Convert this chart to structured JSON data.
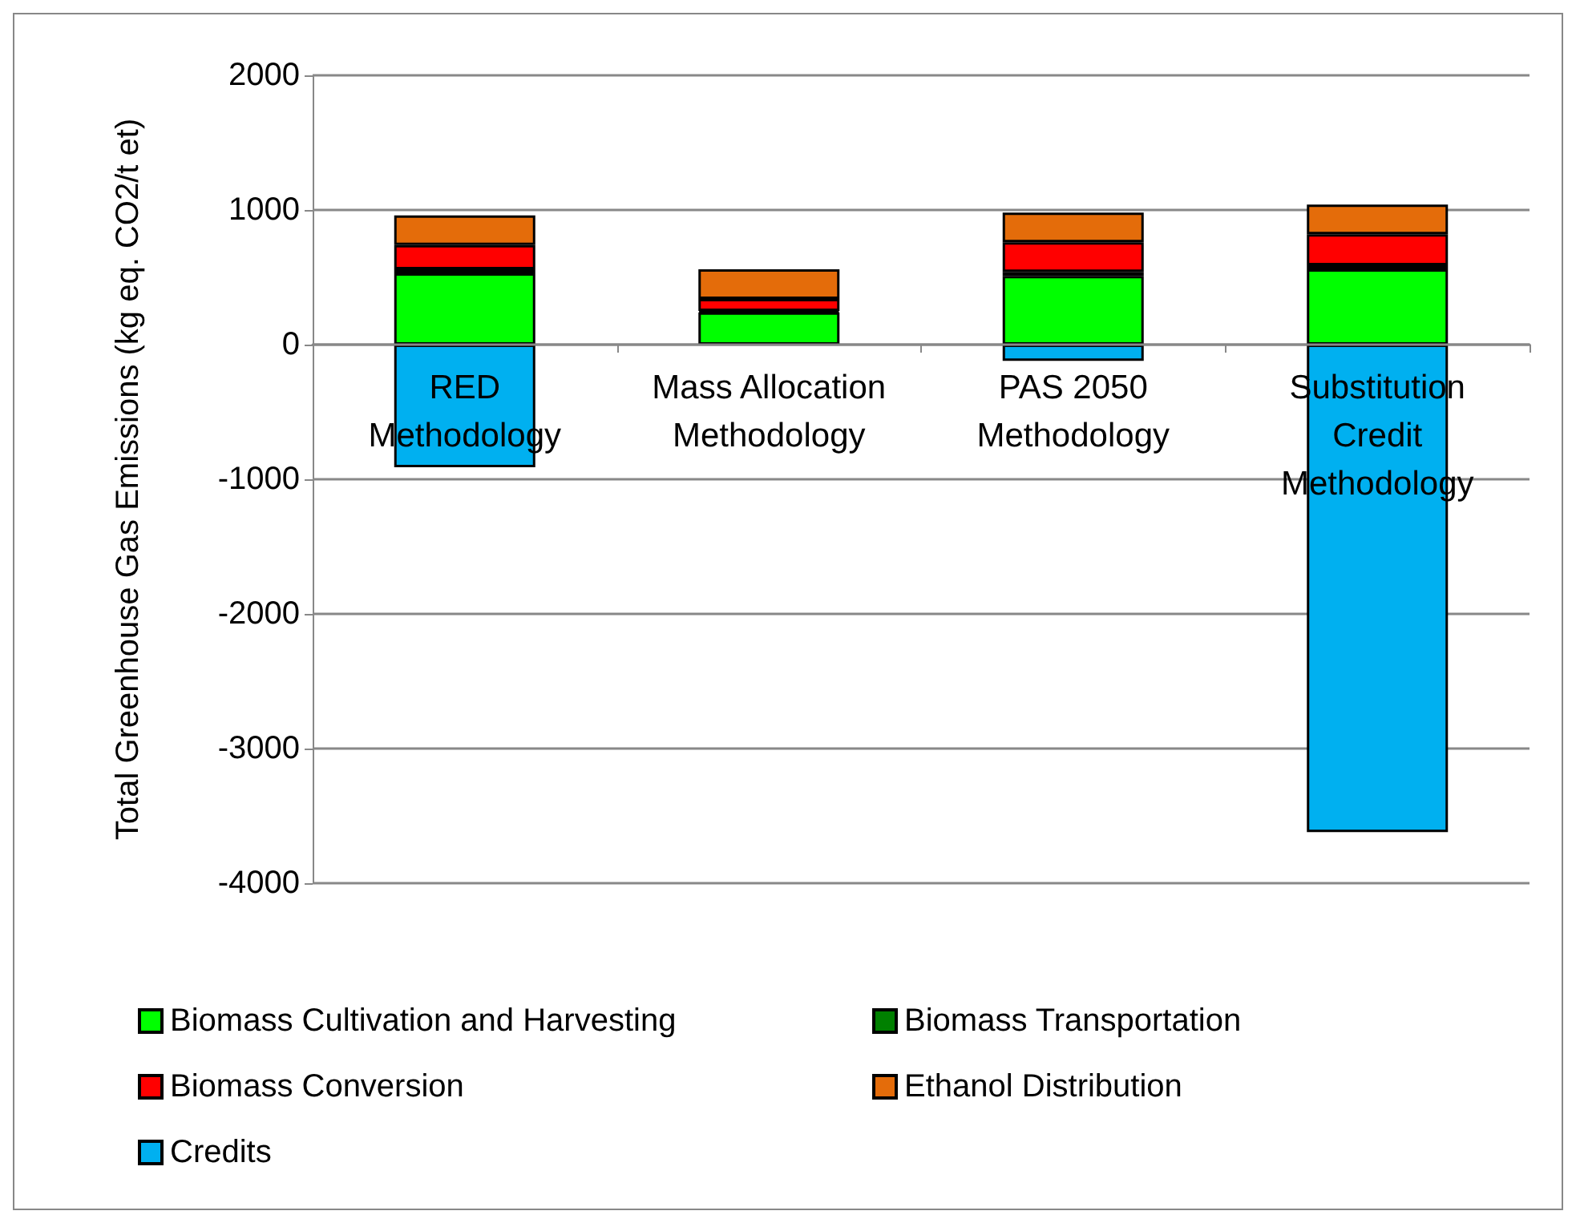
{
  "chart_data": {
    "type": "bar",
    "stacked": true,
    "ylabel": "Total Greenhouse Gas Emissions (kg eq. CO2/t et)",
    "categories": [
      "RED\nMethodology",
      "Mass Allocation\nMethodology",
      "PAS 2050\nMethodology",
      "Substitution\nCredit\nMethodology"
    ],
    "series": [
      {
        "name": "Biomass Cultivation and Harvesting",
        "color": "#00ff00",
        "values": [
          530,
          240,
          510,
          560
        ]
      },
      {
        "name": "Biomass Transportation",
        "color": "#008000",
        "values": [
          30,
          10,
          30,
          30
        ]
      },
      {
        "name": "Biomass Conversion",
        "color": "#ff0000",
        "values": [
          180,
          90,
          220,
          230
        ]
      },
      {
        "name": "Ethanol Distribution",
        "color": "#e46c0a",
        "values": [
          220,
          220,
          220,
          220
        ]
      },
      {
        "name": "Credits",
        "color": "#00b0f0",
        "values": [
          -910,
          null,
          -120,
          -3620
        ]
      }
    ],
    "ylim": [
      -4000,
      2000
    ],
    "yticks": [
      -4000,
      -3000,
      -2000,
      -1000,
      0,
      1000,
      2000
    ],
    "grid": "y",
    "legend": "bottom"
  }
}
